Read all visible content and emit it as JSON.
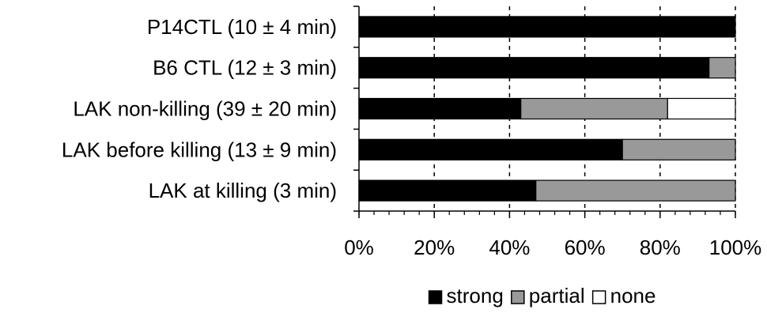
{
  "chart_data": {
    "type": "bar",
    "orientation": "horizontal",
    "stacked": true,
    "normalized": true,
    "categories": [
      "P14CTL (10 ± 4 min)",
      "B6 CTL (12 ± 3 min)",
      "LAK non-killing (39 ± 20 min)",
      "LAK before killing (13 ± 9 min)",
      "LAK at killing (3 min)"
    ],
    "series": [
      {
        "name": "strong",
        "color": "#000000",
        "values": [
          100,
          93,
          43,
          70,
          47
        ]
      },
      {
        "name": "partial",
        "color": "#999999",
        "values": [
          0,
          7,
          39,
          30,
          53
        ]
      },
      {
        "name": "none",
        "color": "#ffffff",
        "values": [
          0,
          0,
          18,
          0,
          0
        ]
      }
    ],
    "xlim": [
      0,
      100
    ],
    "xticks": [
      "0%",
      "20%",
      "40%",
      "60%",
      "80%",
      "100%"
    ],
    "xtick_values": [
      0,
      20,
      40,
      60,
      80,
      100
    ],
    "grid": "vertical dashed",
    "legend": "bottom",
    "title": "",
    "xlabel": "",
    "ylabel": ""
  }
}
